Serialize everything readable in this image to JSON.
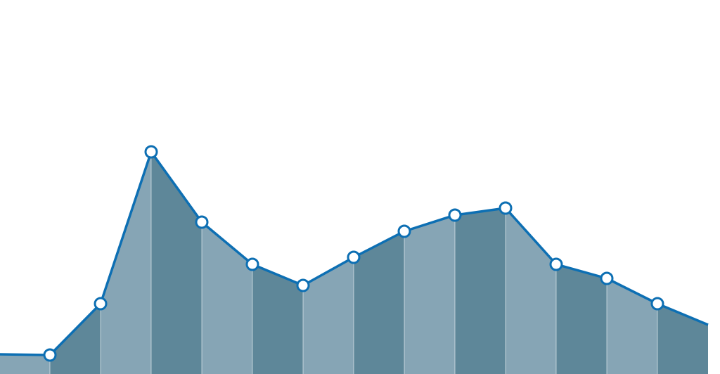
{
  "chart_data": {
    "type": "area",
    "x": [
      0,
      1,
      2,
      3,
      4,
      5,
      6,
      7,
      8,
      9,
      10,
      11,
      12,
      13,
      14
    ],
    "y_unitless": true,
    "values": [
      28,
      27,
      100,
      316,
      216,
      156,
      126,
      166,
      203,
      226,
      236,
      156,
      136,
      100,
      70
    ],
    "first_point_marker": false,
    "last_point_marker": false,
    "ylim": [
      0,
      350
    ],
    "grid": false,
    "legend": "none",
    "title": "",
    "xlabel": "",
    "ylabel": "",
    "colors": {
      "line": "#0d6fb3",
      "marker_fill": "#ffffff",
      "band_light": "#86a5b5",
      "band_dark": "#5e8799",
      "divider": "#ffffff"
    }
  }
}
